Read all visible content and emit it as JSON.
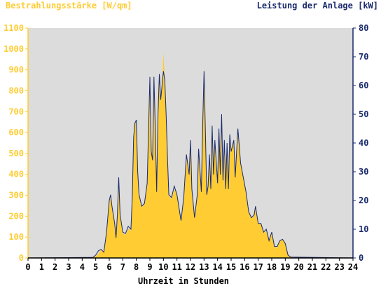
{
  "chart_data": {
    "type": "area",
    "title_left": "Bestrahlungsstärke [W/qm]",
    "title_right": "Leistung der Anlage [kW]",
    "xlabel": "Uhrzeit in Stunden",
    "x_ticks": [
      "0",
      "1",
      "2",
      "3",
      "4",
      "5",
      "6",
      "7",
      "8",
      "9",
      "10",
      "11",
      "12",
      "13",
      "14",
      "15",
      "16",
      "17",
      "18",
      "19",
      "20",
      "21",
      "22",
      "23",
      "24"
    ],
    "xlim": [
      0,
      24
    ],
    "y_left_ticks": [
      "0",
      "100",
      "200",
      "300",
      "400",
      "500",
      "600",
      "700",
      "800",
      "900",
      "1000",
      "1100"
    ],
    "ylim_left": [
      0,
      1100
    ],
    "y_right_ticks": [
      "0",
      "10",
      "20",
      "30",
      "40",
      "50",
      "60",
      "70",
      "80"
    ],
    "ylim_right": [
      0,
      80
    ],
    "grid": false,
    "colors": {
      "irradiance_fill": "#ffcc33",
      "power_line": "#1a2a6c",
      "plot_background": "#dcdcdc",
      "left_axis_text": "#ffcc33",
      "right_axis_text": "#1a2a6c",
      "axis_text": "#000000"
    },
    "series": [
      {
        "role": "irradiance",
        "axis": "left",
        "points": [
          [
            0,
            0
          ],
          [
            4.6,
            2
          ],
          [
            5.0,
            8
          ],
          [
            5.2,
            20
          ],
          [
            5.4,
            40
          ],
          [
            5.6,
            30
          ],
          [
            5.8,
            130
          ],
          [
            6.0,
            260
          ],
          [
            6.1,
            290
          ],
          [
            6.2,
            250
          ],
          [
            6.4,
            160
          ],
          [
            6.5,
            90
          ],
          [
            6.6,
            190
          ],
          [
            6.7,
            350
          ],
          [
            6.8,
            200
          ],
          [
            7.0,
            120
          ],
          [
            7.2,
            110
          ],
          [
            7.4,
            140
          ],
          [
            7.6,
            130
          ],
          [
            7.7,
            280
          ],
          [
            7.8,
            550
          ],
          [
            7.9,
            650
          ],
          [
            8.0,
            660
          ],
          [
            8.1,
            420
          ],
          [
            8.2,
            300
          ],
          [
            8.4,
            240
          ],
          [
            8.6,
            260
          ],
          [
            8.8,
            350
          ],
          [
            8.9,
            600
          ],
          [
            9.0,
            860
          ],
          [
            9.1,
            500
          ],
          [
            9.2,
            460
          ],
          [
            9.3,
            880
          ],
          [
            9.4,
            620
          ],
          [
            9.5,
            310
          ],
          [
            9.6,
            680
          ],
          [
            9.7,
            880
          ],
          [
            9.8,
            760
          ],
          [
            9.9,
            820
          ],
          [
            10.0,
            980
          ],
          [
            10.1,
            860
          ],
          [
            10.2,
            690
          ],
          [
            10.3,
            480
          ],
          [
            10.4,
            300
          ],
          [
            10.6,
            280
          ],
          [
            10.8,
            330
          ],
          [
            11.0,
            300
          ],
          [
            11.2,
            220
          ],
          [
            11.3,
            170
          ],
          [
            11.5,
            290
          ],
          [
            11.7,
            500
          ],
          [
            11.9,
            400
          ],
          [
            12.0,
            560
          ],
          [
            12.1,
            320
          ],
          [
            12.3,
            190
          ],
          [
            12.5,
            300
          ],
          [
            12.6,
            520
          ],
          [
            12.8,
            310
          ],
          [
            12.9,
            640
          ],
          [
            13.0,
            920
          ],
          [
            13.1,
            600
          ],
          [
            13.2,
            300
          ],
          [
            13.3,
            340
          ],
          [
            13.4,
            490
          ],
          [
            13.5,
            320
          ],
          [
            13.6,
            630
          ],
          [
            13.7,
            400
          ],
          [
            13.8,
            560
          ],
          [
            14.0,
            350
          ],
          [
            14.1,
            620
          ],
          [
            14.2,
            400
          ],
          [
            14.3,
            680
          ],
          [
            14.4,
            360
          ],
          [
            14.5,
            560
          ],
          [
            14.6,
            320
          ],
          [
            14.7,
            550
          ],
          [
            14.8,
            330
          ],
          [
            14.9,
            590
          ],
          [
            15.0,
            500
          ],
          [
            15.2,
            560
          ],
          [
            15.3,
            380
          ],
          [
            15.5,
            590
          ],
          [
            15.7,
            450
          ],
          [
            15.9,
            380
          ],
          [
            16.1,
            320
          ],
          [
            16.3,
            220
          ],
          [
            16.5,
            190
          ],
          [
            16.7,
            200
          ],
          [
            16.8,
            250
          ],
          [
            17.0,
            170
          ],
          [
            17.2,
            160
          ],
          [
            17.4,
            120
          ],
          [
            17.6,
            130
          ],
          [
            17.8,
            80
          ],
          [
            18.0,
            120
          ],
          [
            18.2,
            50
          ],
          [
            18.4,
            50
          ],
          [
            18.6,
            80
          ],
          [
            18.8,
            90
          ],
          [
            19.0,
            70
          ],
          [
            19.2,
            15
          ],
          [
            19.4,
            5
          ],
          [
            19.6,
            2
          ],
          [
            24,
            0
          ]
        ]
      },
      {
        "role": "power",
        "axis": "right",
        "points": [
          [
            0,
            0
          ],
          [
            4.8,
            0.2
          ],
          [
            5.0,
            1
          ],
          [
            5.2,
            2.5
          ],
          [
            5.4,
            3
          ],
          [
            5.6,
            2
          ],
          [
            5.8,
            9
          ],
          [
            6.0,
            20
          ],
          [
            6.1,
            22
          ],
          [
            6.2,
            18
          ],
          [
            6.4,
            12
          ],
          [
            6.5,
            7
          ],
          [
            6.6,
            15
          ],
          [
            6.7,
            28
          ],
          [
            6.8,
            15
          ],
          [
            7.0,
            9
          ],
          [
            7.2,
            8.5
          ],
          [
            7.4,
            11
          ],
          [
            7.6,
            10
          ],
          [
            7.7,
            21
          ],
          [
            7.8,
            42
          ],
          [
            7.9,
            47
          ],
          [
            8.0,
            48
          ],
          [
            8.1,
            30
          ],
          [
            8.2,
            22
          ],
          [
            8.4,
            18
          ],
          [
            8.6,
            19
          ],
          [
            8.8,
            26
          ],
          [
            8.9,
            44
          ],
          [
            9.0,
            63
          ],
          [
            9.1,
            37
          ],
          [
            9.2,
            34
          ],
          [
            9.3,
            63
          ],
          [
            9.4,
            45
          ],
          [
            9.5,
            23
          ],
          [
            9.6,
            50
          ],
          [
            9.7,
            64
          ],
          [
            9.8,
            55
          ],
          [
            9.9,
            60
          ],
          [
            10.0,
            65
          ],
          [
            10.1,
            62
          ],
          [
            10.2,
            50
          ],
          [
            10.3,
            35
          ],
          [
            10.4,
            22
          ],
          [
            10.6,
            21
          ],
          [
            10.8,
            25
          ],
          [
            11.0,
            22
          ],
          [
            11.2,
            16
          ],
          [
            11.3,
            13
          ],
          [
            11.5,
            21
          ],
          [
            11.7,
            36
          ],
          [
            11.9,
            29
          ],
          [
            12.0,
            41
          ],
          [
            12.1,
            24
          ],
          [
            12.3,
            14
          ],
          [
            12.5,
            22
          ],
          [
            12.6,
            38
          ],
          [
            12.8,
            23
          ],
          [
            12.9,
            46
          ],
          [
            13.0,
            65
          ],
          [
            13.1,
            44
          ],
          [
            13.2,
            22
          ],
          [
            13.3,
            25
          ],
          [
            13.4,
            36
          ],
          [
            13.5,
            24
          ],
          [
            13.6,
            46
          ],
          [
            13.7,
            29
          ],
          [
            13.8,
            41
          ],
          [
            14.0,
            26
          ],
          [
            14.1,
            45
          ],
          [
            14.2,
            29
          ],
          [
            14.3,
            50
          ],
          [
            14.4,
            27
          ],
          [
            14.5,
            41
          ],
          [
            14.6,
            24
          ],
          [
            14.7,
            40
          ],
          [
            14.8,
            24
          ],
          [
            14.9,
            43
          ],
          [
            15.0,
            37
          ],
          [
            15.2,
            41
          ],
          [
            15.3,
            28
          ],
          [
            15.5,
            45
          ],
          [
            15.7,
            33
          ],
          [
            15.9,
            28
          ],
          [
            16.1,
            23
          ],
          [
            16.3,
            16
          ],
          [
            16.5,
            14
          ],
          [
            16.7,
            15
          ],
          [
            16.8,
            18
          ],
          [
            17.0,
            12
          ],
          [
            17.2,
            12
          ],
          [
            17.4,
            9
          ],
          [
            17.6,
            10
          ],
          [
            17.8,
            6
          ],
          [
            18.0,
            9
          ],
          [
            18.2,
            4
          ],
          [
            18.4,
            4
          ],
          [
            18.6,
            6
          ],
          [
            18.8,
            6.5
          ],
          [
            19.0,
            5
          ],
          [
            19.2,
            1
          ],
          [
            19.4,
            0.3
          ],
          [
            24,
            0
          ]
        ]
      }
    ]
  }
}
